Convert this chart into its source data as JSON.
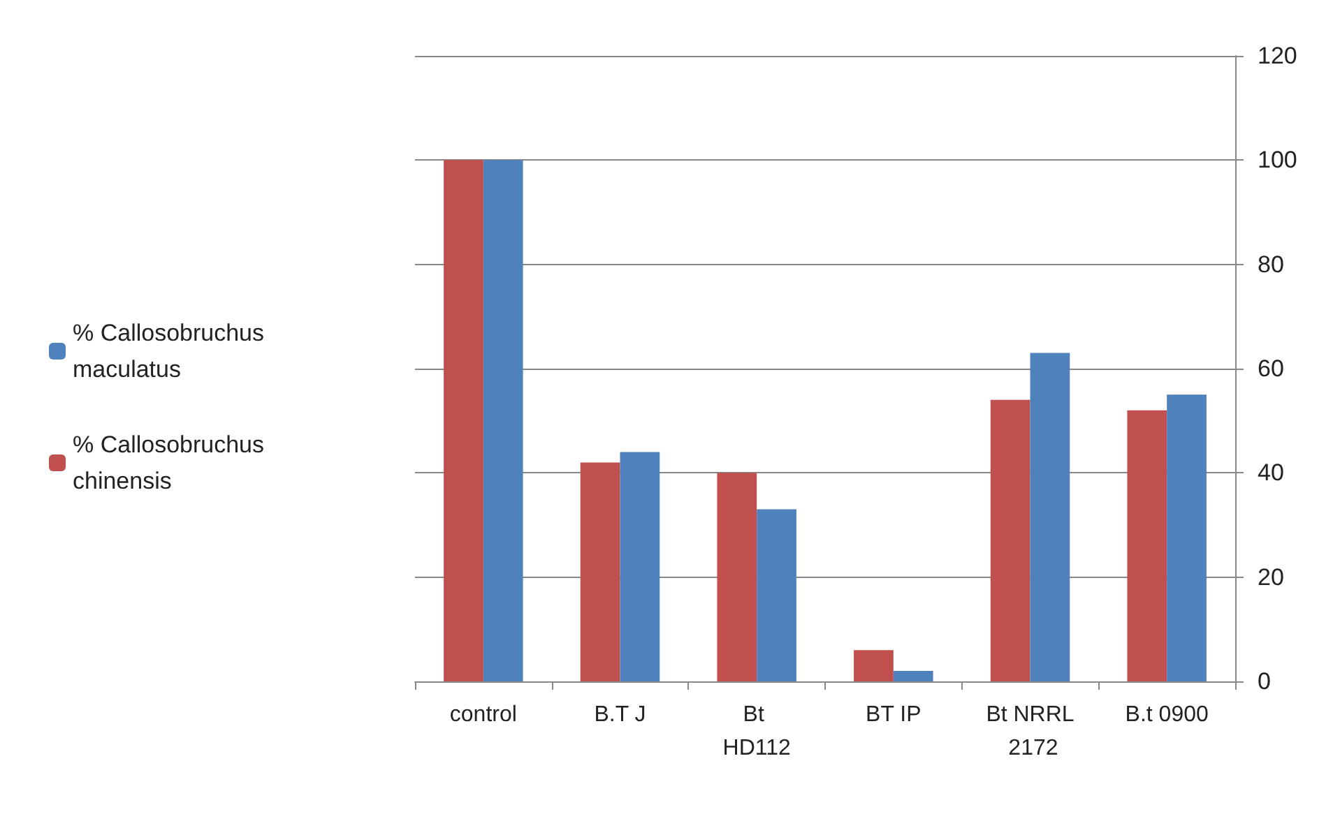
{
  "chart_data": {
    "type": "bar",
    "categories": [
      "control",
      "B.T J",
      "Bt HD112",
      "BT IP",
      "Bt NRRL 2172",
      "B.t 0900"
    ],
    "series": [
      {
        "name": "% Callosobruchus chinensis",
        "color": "#c0504d",
        "values": [
          100,
          42,
          40,
          6,
          54,
          52
        ]
      },
      {
        "name": "% Callosobruchus maculatus",
        "color": "#4f81bd",
        "values": [
          100,
          44,
          33,
          2,
          63,
          55
        ]
      }
    ],
    "ylim": [
      0,
      120
    ],
    "yticks": [
      0,
      20,
      40,
      60,
      80,
      100,
      120
    ],
    "grid": "y",
    "legend": "left"
  }
}
